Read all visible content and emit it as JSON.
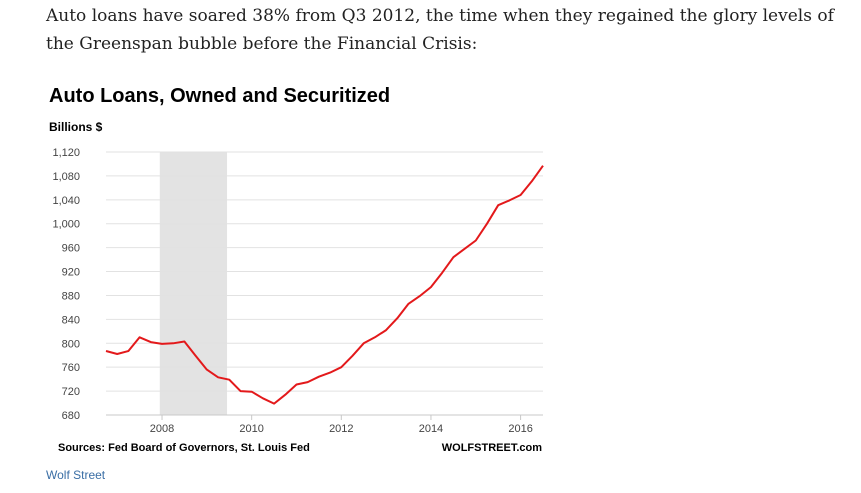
{
  "article": {
    "intro_text": "Auto loans have soared 38% from Q3 2012, the time when they regained the glory levels of the Greenspan bubble before the Financial Crisis:"
  },
  "figure": {
    "source_note": "Sources: Fed Board of Governors, St. Louis Fed",
    "watermark": "WOLFSTREET.com",
    "credit_link": "Wolf Street"
  },
  "colors": {
    "line": "#e3191b",
    "shading": "#e3e3e3",
    "grid": "#e2e2e2",
    "link": "#3a6ea5"
  },
  "chart_data": {
    "type": "line",
    "title": "Auto Loans, Owned and Securitized",
    "ylabel": "Billions $",
    "xlabel": "",
    "ylim": [
      680,
      1120
    ],
    "xlim": [
      2006.75,
      2016.5
    ],
    "yticks": [
      680,
      720,
      760,
      800,
      840,
      880,
      920,
      960,
      1000,
      1040,
      1080,
      1120
    ],
    "ytick_labels": [
      "680",
      "720",
      "760",
      "800",
      "840",
      "880",
      "920",
      "960",
      "1,000",
      "1,040",
      "1,080",
      "1,120"
    ],
    "xticks": [
      2008,
      2010,
      2012,
      2014,
      2016
    ],
    "xtick_labels": [
      "2008",
      "2010",
      "2012",
      "2014",
      "2016"
    ],
    "grid": "horizontal",
    "shaded_region": [
      2007.95,
      2009.45
    ],
    "series": [
      {
        "x": [
          2006.75,
          2007.0,
          2007.25,
          2007.5,
          2007.75,
          2008.0,
          2008.25,
          2008.5,
          2008.75,
          2009.0,
          2009.25,
          2009.5,
          2009.75,
          2010.0,
          2010.25,
          2010.5,
          2010.75,
          2011.0,
          2011.25,
          2011.5,
          2011.75,
          2012.0,
          2012.25,
          2012.5,
          2012.75,
          2013.0,
          2013.25,
          2013.5,
          2013.75,
          2014.0,
          2014.25,
          2014.5,
          2014.75,
          2015.0,
          2015.25,
          2015.5,
          2015.75,
          2016.0,
          2016.25,
          2016.5
        ],
        "values": [
          787,
          782,
          787,
          810,
          802,
          799,
          800,
          803,
          779,
          756,
          743,
          739,
          720,
          719,
          708,
          699,
          714,
          731,
          735,
          744,
          751,
          760,
          779,
          800,
          810,
          822,
          842,
          866,
          879,
          894,
          918,
          944,
          958,
          972,
          1000,
          1031,
          1039,
          1048,
          1071,
          1097
        ]
      }
    ]
  }
}
